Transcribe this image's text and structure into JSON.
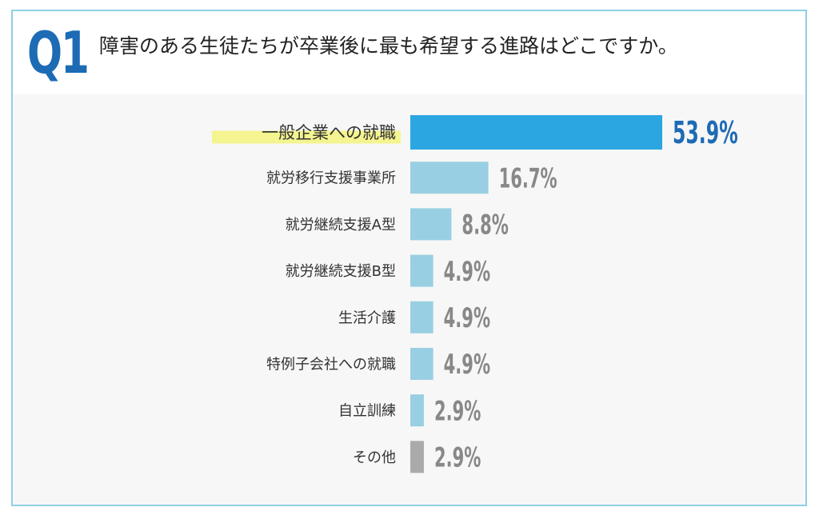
{
  "header": {
    "question_number": "Q1",
    "question": "障害のある生徒たちが卒業後に最も希望する進路はどこですか。"
  },
  "colors": {
    "highlight_bar": "#2ba6e1",
    "highlight_text": "#1d6bb5",
    "bar": "#99cfe2",
    "other_bar": "#aaaaaa",
    "value_text": "#888888",
    "label_highlight": "#f4f490"
  },
  "chart_data": {
    "type": "bar",
    "orientation": "horizontal",
    "title": "",
    "xlabel": "",
    "ylabel": "",
    "unit": "%",
    "xlim": [
      0,
      53.9
    ],
    "categories": [
      "一般企業への就職",
      "就労移行支援事業所",
      "就労継続支援A型",
      "就労継続支援B型",
      "生活介護",
      "特例子会社への就職",
      "自立訓練",
      "その他"
    ],
    "values": [
      53.9,
      16.7,
      8.8,
      4.9,
      4.9,
      4.9,
      2.9,
      2.9
    ],
    "value_labels": [
      "53.9%",
      "16.7%",
      "8.8%",
      "4.9%",
      "4.9%",
      "4.9%",
      "2.9%",
      "2.9%"
    ],
    "highlighted_index": 0,
    "other_index": 7,
    "grid": false,
    "legend": "none"
  }
}
